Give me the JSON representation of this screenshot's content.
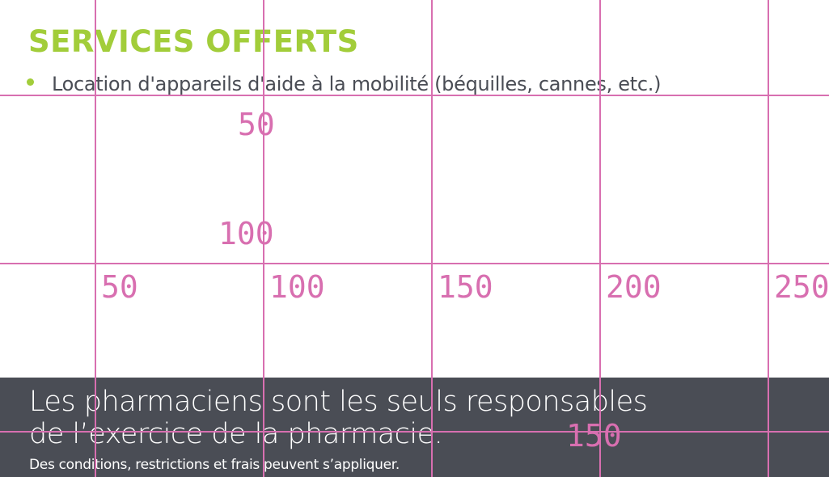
{
  "services": {
    "title": "SERVICES OFFERTS",
    "items": [
      "Location d'appareils d'aide à la mobilité (béquilles, cannes, etc.)"
    ]
  },
  "footer": {
    "line1": "Les pharmaciens sont les seuls responsables",
    "line2": "de l’exercice de la pharmacie.",
    "note": "Des conditions, restrictions et frais peuvent s’appliquer."
  },
  "grid_overlay": {
    "x_labels": [
      "50",
      "100",
      "150",
      "200",
      "250"
    ],
    "y_labels": [
      "50",
      "100",
      "150"
    ]
  },
  "colors": {
    "accent": "#a2cd3a",
    "text": "#4a4d55",
    "footer_bg": "#4a4d55",
    "grid": "#d86fb0"
  }
}
